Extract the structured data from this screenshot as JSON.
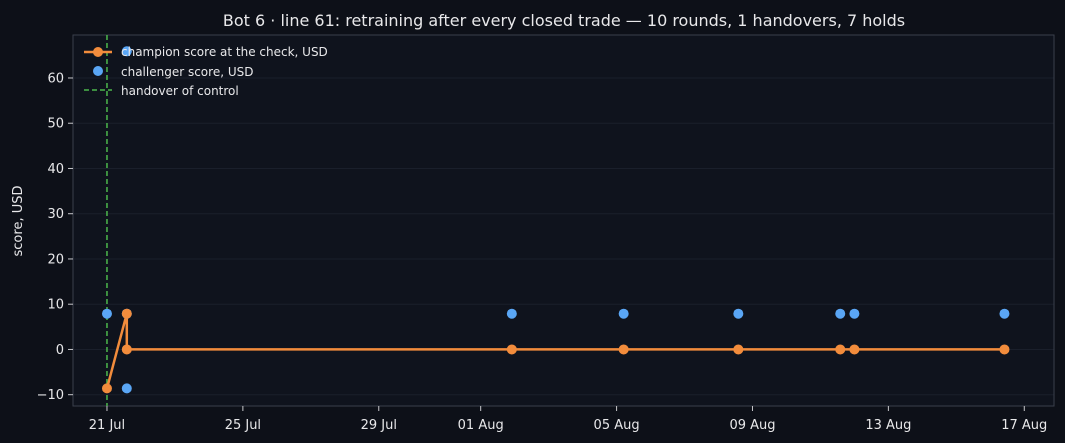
{
  "chart_data": {
    "type": "line",
    "title": "Bot 6 · line 61: retraining after every closed trade — 10 rounds, 1 handovers, 7 holds",
    "xlabel": "",
    "ylabel": "score, USD",
    "xlim": [
      "2025-07-20T00:00",
      "2025-08-17T21:00"
    ],
    "ylim": [
      -12.5,
      69.5
    ],
    "x_ticks": [
      {
        "date": "2025-07-21",
        "label": "21 Jul"
      },
      {
        "date": "2025-07-25",
        "label": "25 Jul"
      },
      {
        "date": "2025-07-29",
        "label": "29 Jul"
      },
      {
        "date": "2025-08-01",
        "label": "01 Aug"
      },
      {
        "date": "2025-08-05",
        "label": "05 Aug"
      },
      {
        "date": "2025-08-09",
        "label": "09 Aug"
      },
      {
        "date": "2025-08-13",
        "label": "13 Aug"
      },
      {
        "date": "2025-08-17",
        "label": "17 Aug"
      }
    ],
    "y_ticks": [
      -10,
      0,
      10,
      20,
      30,
      40,
      50,
      60
    ],
    "grid": true,
    "legend": "top-left",
    "colors": {
      "champion": "#f28c3c",
      "challenger": "#5aa6f5",
      "handover": "#4cb84c",
      "background": "#0d1018",
      "axes": "#3a3f4b"
    },
    "series": [
      {
        "name": "champion score at the check, USD",
        "kind": "line-marker",
        "x": [
          "2025-07-21T00:00",
          "2025-07-21T14:00",
          "2025-07-21T14:00",
          "2025-08-01T22:00",
          "2025-08-05T05:00",
          "2025-08-08T14:00",
          "2025-08-11T14:00",
          "2025-08-12T00:00",
          "2025-08-16T10:00"
        ],
        "values": [
          -8.6,
          7.9,
          0,
          0,
          0,
          0,
          0,
          0,
          0
        ]
      },
      {
        "name": "challenger score, USD",
        "kind": "scatter",
        "x": [
          "2025-07-21T00:00",
          "2025-07-21T14:00",
          "2025-07-21T14:00",
          "2025-07-21T14:00",
          "2025-08-01T22:00",
          "2025-08-05T05:00",
          "2025-08-08T14:00",
          "2025-08-11T14:00",
          "2025-08-12T00:00",
          "2025-08-16T10:00"
        ],
        "values": [
          7.9,
          65.9,
          7.9,
          -8.6,
          7.9,
          7.9,
          7.9,
          7.9,
          7.9,
          7.9
        ]
      }
    ],
    "handovers": {
      "name": "handover of control",
      "x": [
        "2025-07-21T00:00"
      ]
    }
  }
}
